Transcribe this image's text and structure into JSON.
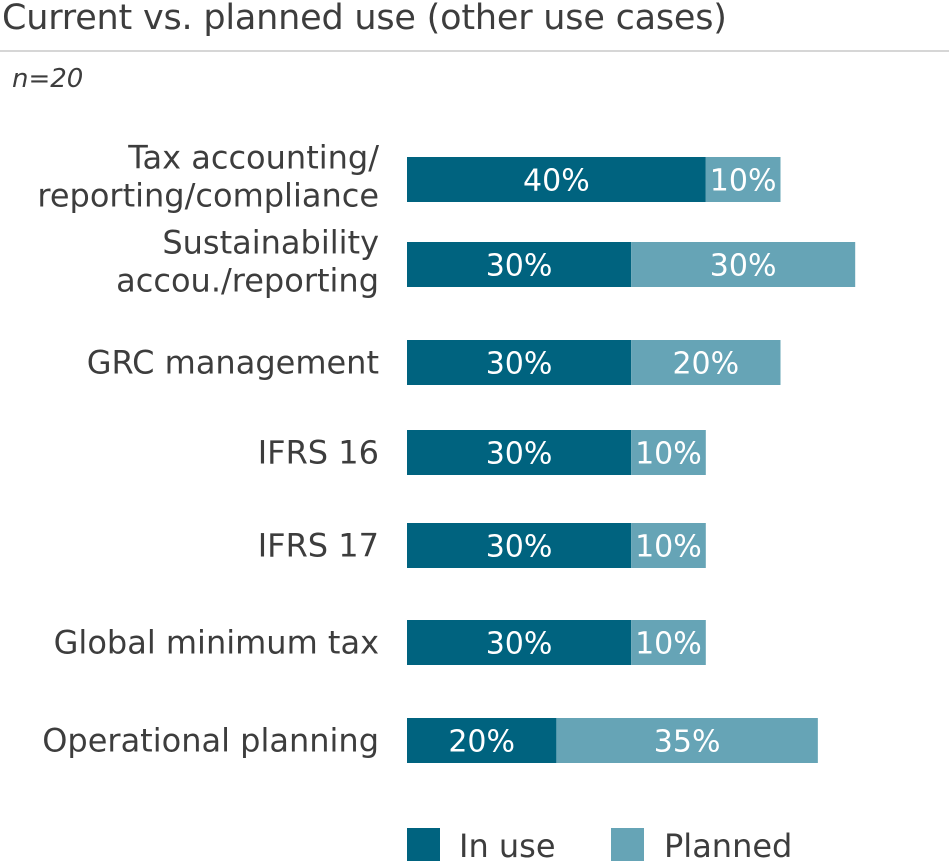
{
  "chart_data": {
    "type": "bar",
    "orientation": "horizontal",
    "stacked": true,
    "title": "Current vs. planned use (other use cases)",
    "subtitle": "n=20",
    "categories": [
      [
        "Tax accounting/",
        "reporting/compliance"
      ],
      [
        "Sustainability",
        "accou./reporting"
      ],
      [
        "GRC management"
      ],
      [
        "IFRS 16"
      ],
      [
        "IFRS 17"
      ],
      [
        "Global minimum tax"
      ],
      [
        "Operational planning"
      ]
    ],
    "series": [
      {
        "name": "In use",
        "color": "#00637f",
        "values": [
          40,
          30,
          30,
          30,
          30,
          30,
          20
        ]
      },
      {
        "name": "Planned",
        "color": "#66a4b6",
        "values": [
          10,
          30,
          20,
          10,
          10,
          10,
          35
        ]
      }
    ],
    "value_suffix": "%",
    "xlim": [
      0,
      60
    ],
    "grid": false,
    "legend_placement": "bottom"
  }
}
